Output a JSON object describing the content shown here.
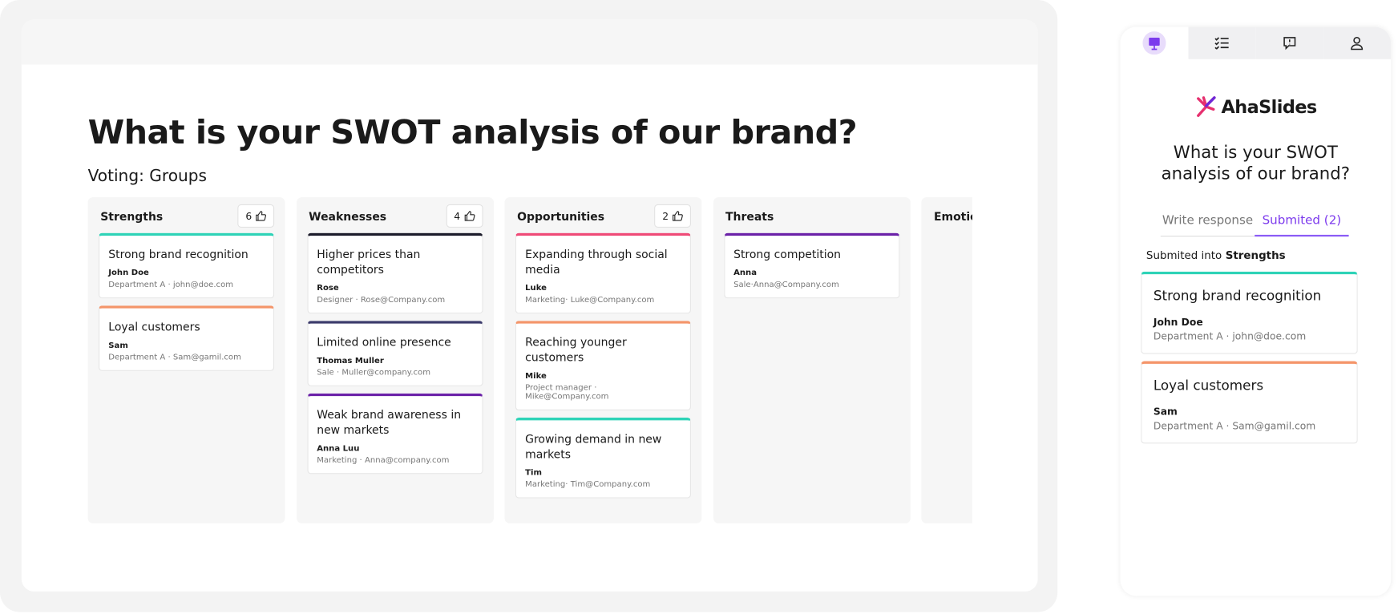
{
  "presentation": {
    "title": "What is your SWOT analysis of our brand?",
    "voting": "Voting: Groups",
    "columns": [
      {
        "name": "Strengths",
        "votes": 6,
        "cards": [
          {
            "text": "Strong brand recognition",
            "author": "John Doe",
            "meta": "Department A · john@doe.com",
            "color": "#2ed3b7"
          },
          {
            "text": "Loyal customers",
            "author": "Sam",
            "meta": "Department A · Sam@gamil.com",
            "color": "#f4956a"
          }
        ]
      },
      {
        "name": "Weaknesses",
        "votes": 4,
        "cards": [
          {
            "text": "Higher prices than competitors",
            "author": "Rose",
            "meta": "Designer · Rose@Company.com",
            "color": "#1c1c2b"
          },
          {
            "text": "Limited online presence",
            "author": "Thomas Muller",
            "meta": "Sale · Muller@company.com",
            "color": "#3b3a6b"
          },
          {
            "text": "Weak brand awareness in new markets",
            "author": "Anna Luu",
            "meta": "Marketing · Anna@company.com",
            "color": "#6b21a8"
          }
        ]
      },
      {
        "name": "Opportunities",
        "votes": 2,
        "cards": [
          {
            "text": "Expanding through social media",
            "author": "Luke",
            "meta": "Marketing· Luke@Company.com",
            "color": "#ef4a77"
          },
          {
            "text": "Reaching younger customers",
            "author": "Mike",
            "meta": "Project manager · Mike@Company.com",
            "color": "#f4956a"
          },
          {
            "text": "Growing demand in new markets",
            "author": "Tim",
            "meta": "Marketing· Tim@Company.com",
            "color": "#2ed3b7"
          }
        ]
      },
      {
        "name": "Threats",
        "cards": [
          {
            "text": "Strong competition",
            "author": "Anna",
            "meta": "Sale·Anna@Company.com",
            "color": "#6b21a8"
          }
        ]
      },
      {
        "name": "Emotion",
        "cards": []
      }
    ]
  },
  "phone": {
    "logo": "AhaSlides",
    "question": "What is your SWOT analysis of our brand?",
    "tabs": [
      "Write response",
      "Submited (2)"
    ],
    "submitted_label": "Submited into",
    "submitted_group": "Strengths",
    "cards": [
      {
        "text": "Strong brand recognition",
        "author": "John Doe",
        "meta": "Department A · john@doe.com",
        "color": "#2ed3b7"
      },
      {
        "text": "Loyal customers",
        "author": "Sam",
        "meta": "Department A · Sam@gamil.com",
        "color": "#f4956a"
      }
    ]
  }
}
